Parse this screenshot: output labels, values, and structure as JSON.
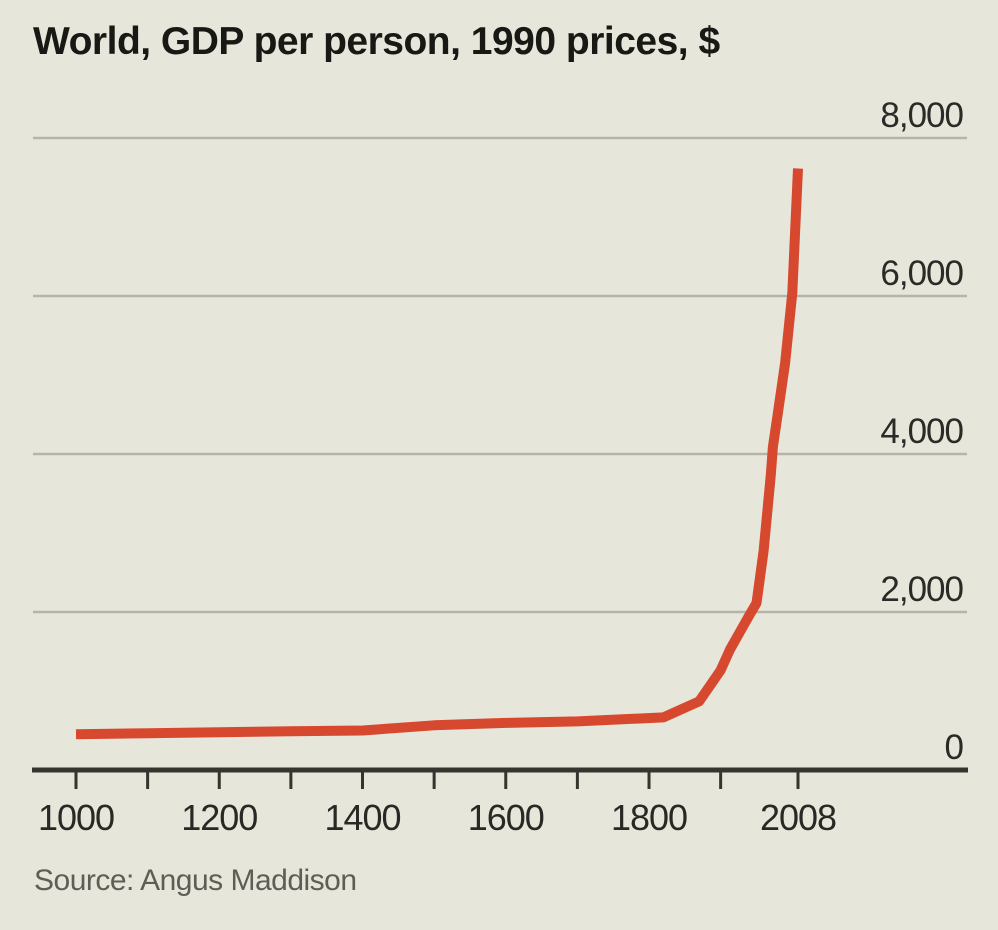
{
  "chart": {
    "title": "World, GDP per person, 1990 prices, $",
    "source": "Source: Angus Maddison"
  },
  "colors": {
    "background": "#e7e6db",
    "line": "#d7492e",
    "gridline": "#b5b4aa",
    "axis": "#35342e",
    "title_text": "#181815",
    "tick_text": "#2a2a26",
    "source_text": "#5e5e56"
  },
  "chart_data": {
    "type": "line",
    "title": "World, GDP per person, 1990 prices, $",
    "source": "Source: Angus Maddison",
    "xlabel": "",
    "ylabel": "GDP per person, 1990 prices, $",
    "xlim": [
      1000,
      2008
    ],
    "ylim": [
      0,
      8000
    ],
    "grid": "horizontal",
    "legend": "none",
    "x": [
      1000,
      1100,
      1200,
      1300,
      1400,
      1500,
      1600,
      1700,
      1820,
      1870,
      1900,
      1913,
      1940,
      1950,
      1960,
      1970,
      1973,
      1980,
      1990,
      2000,
      2008
    ],
    "series": [
      {
        "name": "World GDP per person (1990 $)",
        "values": [
          453,
          465,
          478,
          490,
          500,
          566,
          596,
          615,
          666,
          870,
          1262,
          1525,
          1958,
          2113,
          2773,
          3736,
          4091,
          4520,
          5150,
          6038,
          7614
        ]
      }
    ],
    "y_ticks": [
      {
        "value": 0,
        "label": "0"
      },
      {
        "value": 2000,
        "label": "2,000"
      },
      {
        "value": 4000,
        "label": "4,000"
      },
      {
        "value": 6000,
        "label": "6,000"
      },
      {
        "value": 8000,
        "label": "8,000"
      }
    ],
    "x_minor_ticks": [
      1000,
      1100,
      1200,
      1300,
      1400,
      1500,
      1600,
      1700,
      1800,
      1900,
      2008
    ],
    "x_tick_labels": [
      {
        "year": 1000,
        "label": "1000"
      },
      {
        "year": 1200,
        "label": "1200"
      },
      {
        "year": 1400,
        "label": "1400"
      },
      {
        "year": 1600,
        "label": "1600"
      },
      {
        "year": 1800,
        "label": "1800"
      },
      {
        "year": 2008,
        "label": "2008"
      }
    ]
  }
}
